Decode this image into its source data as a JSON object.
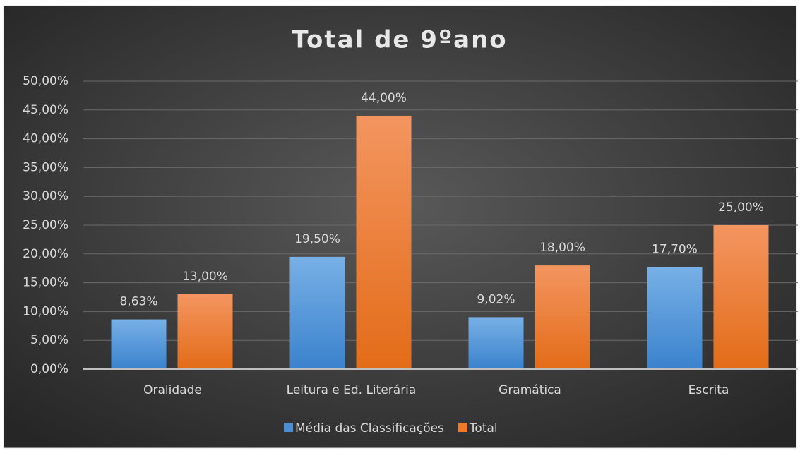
{
  "chart_data": {
    "type": "bar",
    "title": "Total de 9ºano",
    "categories": [
      "Oralidade",
      "Leitura e Ed. Literária",
      "Gramática",
      "Escrita"
    ],
    "series": [
      {
        "name": "Média das Classificações",
        "color": "#4a8fd6",
        "values": [
          8.63,
          19.5,
          9.02,
          17.7
        ],
        "value_labels": [
          "8,63%",
          "19,50%",
          "9,02%",
          "17,70%"
        ]
      },
      {
        "name": "Total",
        "color": "#ee7a2a",
        "values": [
          13,
          44,
          18,
          25
        ],
        "value_labels": [
          "13,00%",
          "44,00%",
          "18,00%",
          "25,00%"
        ]
      }
    ],
    "ylim": [
      0,
      50
    ],
    "yticks": [
      {
        "value": 0,
        "label": "0,00%"
      },
      {
        "value": 5,
        "label": "5,00%"
      },
      {
        "value": 10,
        "label": "10,00%"
      },
      {
        "value": 15,
        "label": "15,00%"
      },
      {
        "value": 20,
        "label": "20,00%"
      },
      {
        "value": 25,
        "label": "25,00%"
      },
      {
        "value": 30,
        "label": "30,00%"
      },
      {
        "value": 35,
        "label": "35,00%"
      },
      {
        "value": 40,
        "label": "40,00%"
      },
      {
        "value": 45,
        "label": "45,00%"
      },
      {
        "value": 50,
        "label": "50,00%"
      }
    ],
    "grid": true,
    "legend": "bottom"
  }
}
